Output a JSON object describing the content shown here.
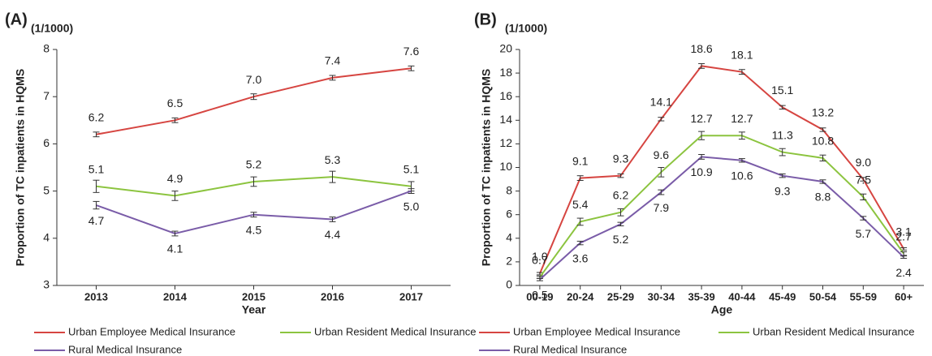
{
  "chart_data": [
    {
      "type": "line",
      "panel_label": "(A)",
      "unit_label": "(1/1000)",
      "y_label": "Proportion of TC inpatients in HQMS",
      "x_label": "Year",
      "categories": [
        "2013",
        "2014",
        "2015",
        "2016",
        "2017"
      ],
      "ylim": [
        3,
        8
      ],
      "yticks": [
        3,
        4,
        5,
        6,
        7,
        8
      ],
      "grid": false,
      "series": [
        {
          "name": "Urban Employee Medical Insurance",
          "color": "#d64541",
          "values": [
            6.2,
            6.5,
            7.0,
            7.4,
            7.6
          ],
          "value_labels": [
            "6.2",
            "6.5",
            "7.0",
            "7.4",
            "7.6"
          ],
          "errors": [
            0.05,
            0.05,
            0.06,
            0.05,
            0.05
          ]
        },
        {
          "name": "Urban Resident Medical Insurance",
          "color": "#8cc43f",
          "values": [
            5.1,
            4.9,
            5.2,
            5.3,
            5.1
          ],
          "value_labels": [
            "5.1",
            "4.9",
            "5.2",
            "5.3",
            "5.1"
          ],
          "errors": [
            0.13,
            0.1,
            0.1,
            0.12,
            0.1
          ]
        },
        {
          "name": "Rural Medical Insurance",
          "color": "#7a5ca8",
          "values": [
            4.7,
            4.1,
            4.5,
            4.4,
            5.0
          ],
          "value_labels": [
            "4.7",
            "4.1",
            "4.5",
            "4.4",
            "5.0"
          ],
          "errors": [
            0.08,
            0.05,
            0.05,
            0.05,
            0.05
          ]
        }
      ]
    },
    {
      "type": "line",
      "panel_label": "(B)",
      "unit_label": "(1/1000)",
      "y_label": "Proportion of TC inpatients in HQMS",
      "x_label": "Age",
      "categories": [
        "00-19",
        "20-24",
        "25-29",
        "30-34",
        "35-39",
        "40-44",
        "45-49",
        "50-54",
        "55-59",
        "60+"
      ],
      "ylim": [
        0,
        20
      ],
      "yticks": [
        0,
        2,
        4,
        6,
        8,
        10,
        12,
        14,
        16,
        18,
        20
      ],
      "grid": false,
      "series": [
        {
          "name": "Urban Employee Medical Insurance",
          "color": "#d64541",
          "values": [
            1.0,
            9.1,
            9.3,
            14.1,
            18.6,
            18.1,
            15.1,
            13.2,
            9.0,
            3.1
          ],
          "value_labels": [
            "1.0",
            "9.1",
            "9.3",
            "14.1",
            "18.6",
            "18.1",
            "15.1",
            "13.2",
            "9.0",
            "3.1"
          ],
          "errors": [
            0.1,
            0.2,
            0.15,
            0.15,
            0.2,
            0.2,
            0.15,
            0.15,
            0.15,
            0.1
          ]
        },
        {
          "name": "Urban Resident Medical Insurance",
          "color": "#8cc43f",
          "values": [
            0.7,
            5.4,
            6.2,
            9.6,
            12.7,
            12.7,
            11.3,
            10.8,
            7.5,
            2.7
          ],
          "value_labels": [
            "0.7",
            "5.4",
            "6.2",
            "9.6",
            "12.7",
            "12.7",
            "11.3",
            "10.8",
            "7.5",
            "2.7"
          ],
          "errors": [
            0.1,
            0.3,
            0.3,
            0.4,
            0.35,
            0.3,
            0.3,
            0.25,
            0.25,
            0.15
          ]
        },
        {
          "name": "Rural Medical Insurance",
          "color": "#7a5ca8",
          "values": [
            0.5,
            3.6,
            5.2,
            7.9,
            10.9,
            10.6,
            9.3,
            8.8,
            5.7,
            2.4
          ],
          "value_labels": [
            "0.5",
            "3.6",
            "5.2",
            "7.9",
            "10.9",
            "10.6",
            "9.3",
            "8.8",
            "5.7",
            "2.4"
          ],
          "errors": [
            0.1,
            0.15,
            0.15,
            0.2,
            0.2,
            0.15,
            0.15,
            0.15,
            0.15,
            0.1
          ]
        }
      ]
    }
  ]
}
